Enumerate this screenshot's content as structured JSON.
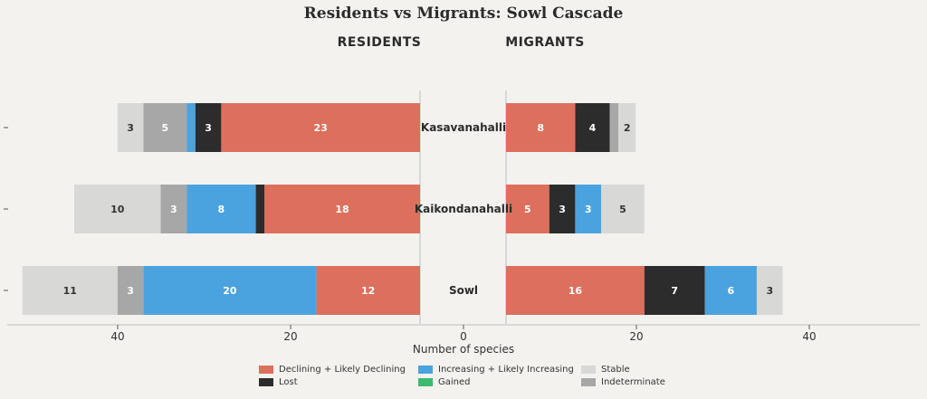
{
  "chart_data": {
    "type": "bar",
    "title": "Residents vs Migrants: Sowl Cascade",
    "xlabel": "Number of species",
    "panels": [
      {
        "name": "RESIDENTS",
        "direction": "left"
      },
      {
        "name": "MIGRANTS",
        "direction": "right"
      }
    ],
    "categories": [
      "Kasavanahalli",
      "Kaikondanahalli",
      "Sowl"
    ],
    "x_ticks": [
      "40",
      "20",
      "0",
      "20",
      "40"
    ],
    "series": [
      {
        "name": "Declining + Likely Declining",
        "color": "#dd6f5d",
        "residents": [
          23,
          18,
          12
        ],
        "migrants": [
          8,
          5,
          16
        ]
      },
      {
        "name": "Lost",
        "color": "#2c2c2c",
        "residents": [
          3,
          1,
          0
        ],
        "migrants": [
          4,
          3,
          7
        ]
      },
      {
        "name": "Increasing + Likely Increasing",
        "color": "#4aa3de",
        "residents": [
          1,
          8,
          20
        ],
        "migrants": [
          0,
          3,
          6
        ]
      },
      {
        "name": "Gained",
        "color": "#3dba6f",
        "residents": [
          0,
          0,
          0
        ],
        "migrants": [
          0,
          0,
          0
        ]
      },
      {
        "name": "Indeterminate",
        "color": "#a7a7a7",
        "residents": [
          5,
          3,
          3
        ],
        "migrants": [
          1,
          0,
          0
        ]
      },
      {
        "name": "Stable",
        "color": "#d8d8d6",
        "residents": [
          3,
          10,
          11
        ],
        "migrants": [
          2,
          5,
          3
        ]
      }
    ],
    "bar_labels": {
      "residents": [
        [
          "23",
          "3",
          "",
          "",
          "5",
          "3"
        ],
        [
          "18",
          "",
          "8",
          "",
          "3",
          "10"
        ],
        [
          "12",
          "",
          "20",
          "",
          "3",
          "11"
        ]
      ],
      "migrants": [
        [
          "8",
          "4",
          "",
          "",
          "",
          "2"
        ],
        [
          "5",
          "3",
          "3",
          "",
          "",
          "5"
        ],
        [
          "16",
          "7",
          "6",
          "",
          "",
          "3"
        ]
      ]
    },
    "legend": [
      {
        "label": "Declining + Likely Declining",
        "color": "#dd6f5d"
      },
      {
        "label": "Lost",
        "color": "#2c2c2c"
      },
      {
        "label": "Increasing + Likely Increasing",
        "color": "#4aa3de"
      },
      {
        "label": "Gained",
        "color": "#3dba6f"
      },
      {
        "label": "Stable",
        "color": "#d8d8d6"
      },
      {
        "label": "Indeterminate",
        "color": "#a7a7a7"
      }
    ],
    "legend_position": "bottom-center",
    "grid": false
  }
}
